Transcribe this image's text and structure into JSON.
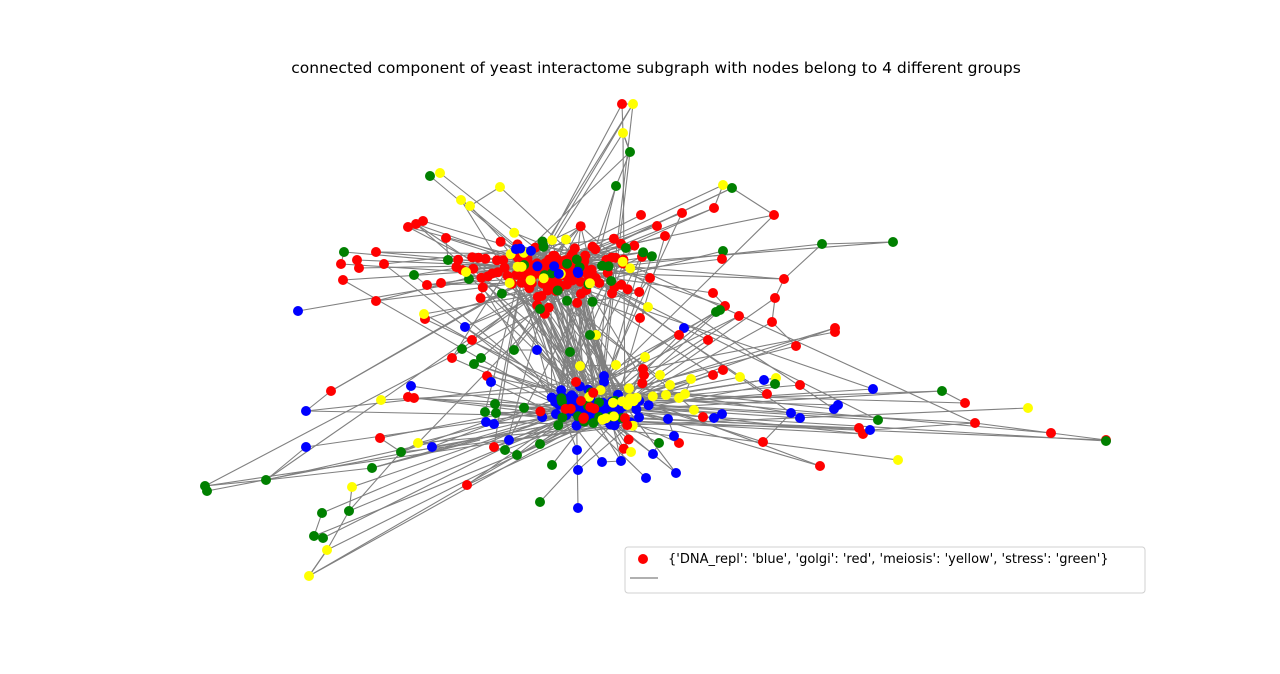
{
  "title": "connected component of yeast interactome subgraph with nodes belong to 4 different groups",
  "legend": {
    "label": "{'DNA_repl': 'blue', 'golgi': 'red', 'meiosis': 'yellow', 'stress': 'green'}",
    "marker_color": "#ff0000",
    "line_color": "#808080"
  },
  "groups": {
    "DNA_repl": "blue",
    "golgi": "red",
    "meiosis": "yellow",
    "stress": "green"
  },
  "colors": {
    "edge": "#808080",
    "background": "#ffffff"
  }
}
